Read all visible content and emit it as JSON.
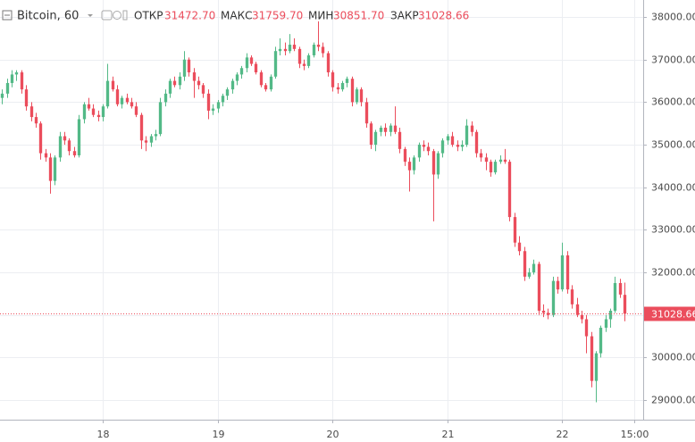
{
  "chart_data": {
    "type": "candlestick",
    "title": "Bitcoin, 60",
    "legend": [
      {
        "label": "ОТКР",
        "value": "31472.70"
      },
      {
        "label": "МАКС",
        "value": "31759.70"
      },
      {
        "label": "МИН",
        "value": "30851.70"
      },
      {
        "label": "ЗАКР",
        "value": "31028.66"
      }
    ],
    "up_color": "#53b987",
    "down_color": "#eb4d5c",
    "grid": true,
    "xlim": [
      -0.45,
      133.9
    ],
    "xticks": [
      {
        "value": 21,
        "label": "18"
      },
      {
        "value": 45,
        "label": "19"
      },
      {
        "value": 69,
        "label": "20"
      },
      {
        "value": 93,
        "label": "21"
      },
      {
        "value": 117,
        "label": "22"
      },
      {
        "value": 132,
        "label": "15:00"
      }
    ],
    "ylim": [
      28540,
      38400
    ],
    "yticks": [
      {
        "value": 29000,
        "label": "29000.00"
      },
      {
        "value": 30000,
        "label": "30000.00"
      },
      {
        "value": 31000,
        "label": "31000.00"
      },
      {
        "value": 32000,
        "label": "32000.00"
      },
      {
        "value": 33000,
        "label": "33000.00"
      },
      {
        "value": 34000,
        "label": "34000.00"
      },
      {
        "value": 35000,
        "label": "35000.00"
      },
      {
        "value": 36000,
        "label": "36000.00"
      },
      {
        "value": 37000,
        "label": "37000.00"
      },
      {
        "value": 38000,
        "label": "38000.00"
      }
    ],
    "last_price": {
      "value": 31028.66,
      "label": "31028.66"
    },
    "candles": [
      [
        36100,
        36300,
        35950,
        36200
      ],
      [
        36200,
        36550,
        36100,
        36450
      ],
      [
        36450,
        36750,
        36350,
        36650
      ],
      [
        36650,
        36750,
        36500,
        36700
      ],
      [
        36700,
        36750,
        36200,
        36300
      ],
      [
        36300,
        36400,
        35800,
        35900
      ],
      [
        35900,
        36000,
        35550,
        35650
      ],
      [
        35650,
        35750,
        35400,
        35500
      ],
      [
        35500,
        35550,
        34650,
        34800
      ],
      [
        34800,
        34900,
        34600,
        34700
      ],
      [
        34700,
        34800,
        33850,
        34150
      ],
      [
        34150,
        34750,
        34050,
        34700
      ],
      [
        34700,
        35300,
        34600,
        35200
      ],
      [
        35200,
        35300,
        35000,
        35100
      ],
      [
        35100,
        35150,
        34750,
        34850
      ],
      [
        34850,
        34950,
        34700,
        34750
      ],
      [
        34750,
        35700,
        34700,
        35600
      ],
      [
        35600,
        36000,
        35500,
        35950
      ],
      [
        35950,
        36100,
        35800,
        35850
      ],
      [
        35850,
        35950,
        35650,
        35700
      ],
      [
        35700,
        35800,
        35550,
        35650
      ],
      [
        35650,
        35950,
        35550,
        35900
      ],
      [
        35900,
        36900,
        35850,
        36500
      ],
      [
        36500,
        36600,
        36250,
        36300
      ],
      [
        36300,
        36400,
        35900,
        35950
      ],
      [
        35950,
        36150,
        35850,
        36100
      ],
      [
        36100,
        36200,
        35950,
        36000
      ],
      [
        36000,
        36100,
        35850,
        35900
      ],
      [
        35900,
        36000,
        35650,
        35700
      ],
      [
        35700,
        35750,
        34900,
        35100
      ],
      [
        35100,
        35200,
        34850,
        35050
      ],
      [
        35050,
        35250,
        34950,
        35200
      ],
      [
        35200,
        35350,
        35100,
        35250
      ],
      [
        35250,
        36100,
        35200,
        36000
      ],
      [
        36000,
        36300,
        35900,
        36200
      ],
      [
        36200,
        36550,
        36100,
        36500
      ],
      [
        36500,
        36600,
        36350,
        36400
      ],
      [
        36400,
        36700,
        36300,
        36600
      ],
      [
        36600,
        37200,
        36500,
        37000
      ],
      [
        37000,
        37050,
        36600,
        36700
      ],
      [
        36700,
        36800,
        36100,
        36500
      ],
      [
        36500,
        36600,
        36300,
        36400
      ],
      [
        36400,
        36450,
        36100,
        36200
      ],
      [
        36200,
        36300,
        35600,
        35800
      ],
      [
        35800,
        35950,
        35700,
        35850
      ],
      [
        35850,
        36050,
        35750,
        36000
      ],
      [
        36000,
        36200,
        35900,
        36150
      ],
      [
        36150,
        36350,
        36050,
        36300
      ],
      [
        36300,
        36550,
        36200,
        36500
      ],
      [
        36500,
        36700,
        36400,
        36650
      ],
      [
        36650,
        36850,
        36550,
        36800
      ],
      [
        36800,
        37150,
        36700,
        37050
      ],
      [
        37050,
        37100,
        36850,
        36900
      ],
      [
        36900,
        36950,
        36650,
        36700
      ],
      [
        36700,
        36750,
        36350,
        36400
      ],
      [
        36400,
        36450,
        36250,
        36300
      ],
      [
        36300,
        36650,
        36250,
        36600
      ],
      [
        36600,
        37300,
        36550,
        37200
      ],
      [
        37200,
        37500,
        37100,
        37250
      ],
      [
        37250,
        37400,
        37100,
        37200
      ],
      [
        37200,
        37600,
        37150,
        37350
      ],
      [
        37350,
        37500,
        37200,
        37250
      ],
      [
        37250,
        37300,
        36800,
        36900
      ],
      [
        36900,
        37000,
        36750,
        36850
      ],
      [
        36850,
        37150,
        36800,
        37100
      ],
      [
        37100,
        37400,
        37050,
        37350
      ],
      [
        37350,
        37900,
        37200,
        37300
      ],
      [
        37300,
        37400,
        37050,
        37150
      ],
      [
        37150,
        37200,
        36600,
        36700
      ],
      [
        36700,
        36750,
        36250,
        36350
      ],
      [
        36350,
        36450,
        36200,
        36300
      ],
      [
        36300,
        36500,
        36250,
        36450
      ],
      [
        36450,
        36600,
        36350,
        36550
      ],
      [
        36550,
        36600,
        35900,
        36000
      ],
      [
        36000,
        36350,
        35950,
        36300
      ],
      [
        36300,
        36350,
        35900,
        36000
      ],
      [
        36000,
        36100,
        35400,
        35500
      ],
      [
        35500,
        35550,
        34900,
        35000
      ],
      [
        35000,
        35350,
        34850,
        35300
      ],
      [
        35300,
        35450,
        35200,
        35400
      ],
      [
        35400,
        35500,
        35200,
        35300
      ],
      [
        35300,
        35500,
        35200,
        35450
      ],
      [
        35450,
        35900,
        35250,
        35300
      ],
      [
        35300,
        35400,
        34800,
        34900
      ],
      [
        34900,
        34950,
        34500,
        34600
      ],
      [
        34600,
        34700,
        33900,
        34400
      ],
      [
        34400,
        34750,
        34300,
        34700
      ],
      [
        34700,
        35050,
        34600,
        35000
      ],
      [
        35000,
        35100,
        34850,
        34950
      ],
      [
        34950,
        35050,
        34750,
        34850
      ],
      [
        34850,
        34900,
        33200,
        34300
      ],
      [
        34300,
        34850,
        34200,
        34800
      ],
      [
        34800,
        35150,
        34700,
        35100
      ],
      [
        35100,
        35250,
        35000,
        35200
      ],
      [
        35200,
        35300,
        34950,
        35000
      ],
      [
        35000,
        35100,
        34850,
        34950
      ],
      [
        34950,
        35100,
        34850,
        35000
      ],
      [
        35000,
        35600,
        34950,
        35450
      ],
      [
        35450,
        35550,
        35200,
        35300
      ],
      [
        35300,
        35350,
        34700,
        34800
      ],
      [
        34800,
        34900,
        34600,
        34700
      ],
      [
        34700,
        34800,
        34400,
        34600
      ],
      [
        34600,
        34650,
        34250,
        34350
      ],
      [
        34350,
        34650,
        34300,
        34600
      ],
      [
        34600,
        34750,
        34550,
        34650
      ],
      [
        34650,
        34900,
        34550,
        34600
      ],
      [
        34600,
        34650,
        33200,
        33300
      ],
      [
        33300,
        33400,
        32600,
        32700
      ],
      [
        32700,
        32850,
        32400,
        32500
      ],
      [
        32500,
        32600,
        31800,
        31900
      ],
      [
        31900,
        32100,
        31850,
        32000
      ],
      [
        32000,
        32300,
        31950,
        32200
      ],
      [
        32200,
        32250,
        31000,
        31100
      ],
      [
        31100,
        31250,
        30950,
        31050
      ],
      [
        31050,
        31150,
        30900,
        31000
      ],
      [
        31000,
        31900,
        30950,
        31800
      ],
      [
        31800,
        31900,
        31500,
        31600
      ],
      [
        31600,
        32700,
        31550,
        32400
      ],
      [
        32400,
        32500,
        31500,
        31600
      ],
      [
        31600,
        31700,
        31150,
        31250
      ],
      [
        31250,
        31400,
        30950,
        31000
      ],
      [
        31000,
        31100,
        30800,
        30900
      ],
      [
        30900,
        31000,
        30100,
        30500
      ],
      [
        30500,
        30600,
        29300,
        29450
      ],
      [
        29450,
        30150,
        28950,
        30100
      ],
      [
        30100,
        30750,
        30000,
        30700
      ],
      [
        30700,
        31000,
        30600,
        30900
      ],
      [
        30900,
        31150,
        30700,
        31100
      ],
      [
        31100,
        31900,
        31050,
        31750
      ],
      [
        31750,
        31850,
        31400,
        31480
      ],
      [
        31472.7,
        31759.7,
        30851.7,
        31028.66
      ]
    ]
  }
}
